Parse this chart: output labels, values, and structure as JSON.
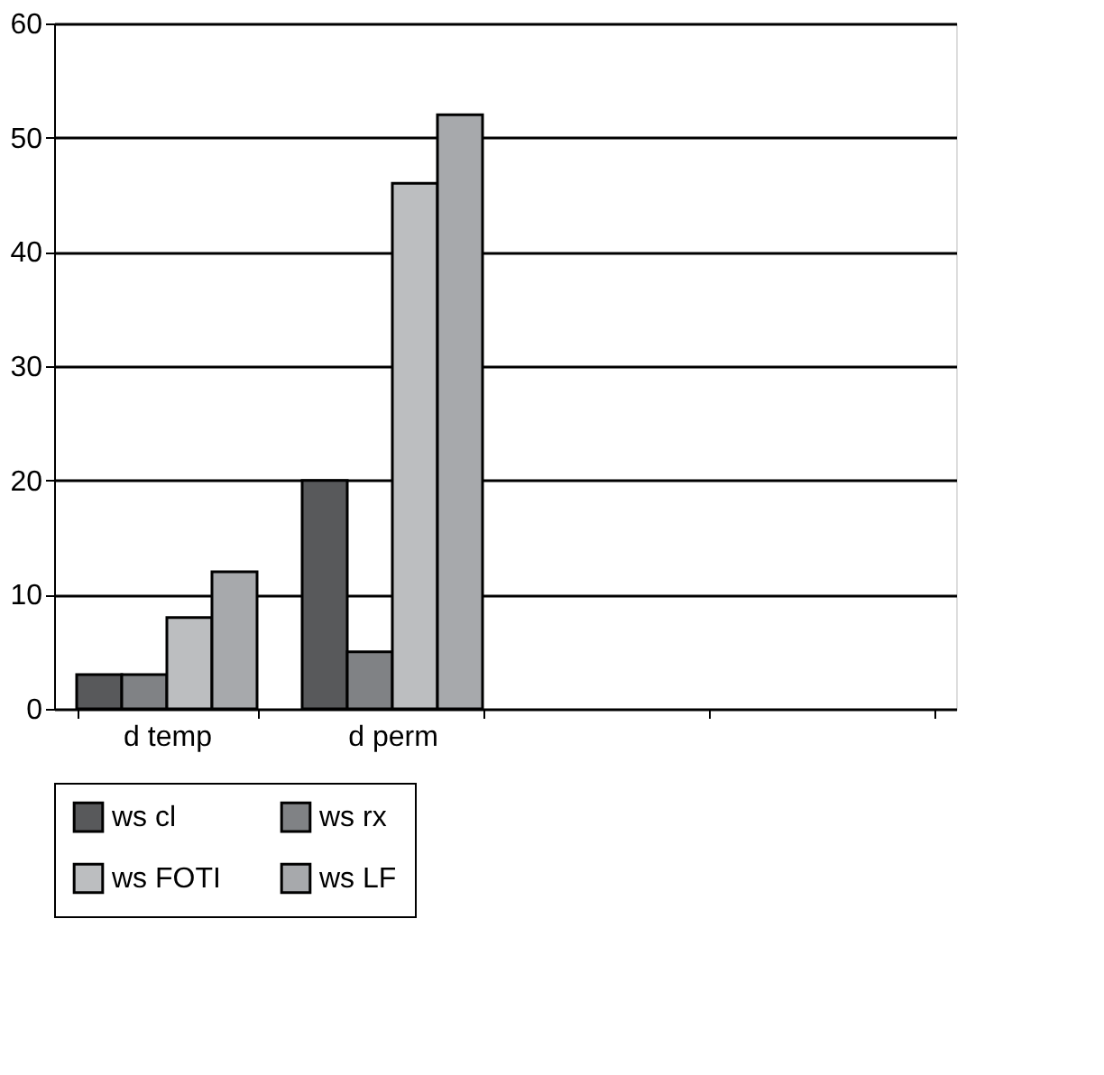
{
  "chart_data": {
    "type": "bar",
    "categories": [
      "d temp",
      "d perm",
      null,
      null
    ],
    "series": [
      {
        "name": "ws cl",
        "color": "#58595b",
        "values": [
          3,
          20,
          null,
          null
        ]
      },
      {
        "name": "ws rx",
        "color": "#808285",
        "values": [
          3,
          5,
          null,
          null
        ]
      },
      {
        "name": "ws FOTI",
        "color": "#bcbec0",
        "values": [
          8,
          46,
          null,
          null
        ]
      },
      {
        "name": "ws LF",
        "color": "#a7a9ac",
        "values": [
          12,
          52,
          null,
          null
        ]
      }
    ],
    "ylim": [
      0,
      60
    ],
    "yticks": [
      0,
      10,
      20,
      30,
      40,
      50,
      60
    ],
    "grid": "y",
    "legend": "bottom"
  }
}
